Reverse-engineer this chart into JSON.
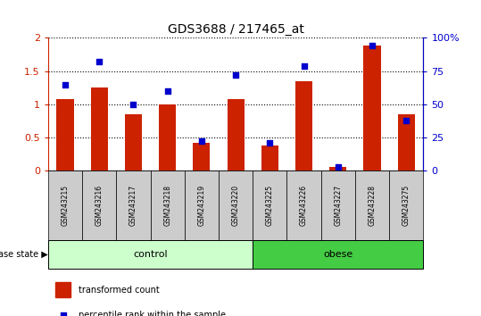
{
  "title": "GDS3688 / 217465_at",
  "samples": [
    "GSM243215",
    "GSM243216",
    "GSM243217",
    "GSM243218",
    "GSM243219",
    "GSM243220",
    "GSM243225",
    "GSM243226",
    "GSM243227",
    "GSM243228",
    "GSM243275"
  ],
  "transformed_count": [
    1.08,
    1.25,
    0.85,
    1.0,
    0.42,
    1.08,
    0.38,
    1.35,
    0.05,
    1.88,
    0.85
  ],
  "percentile_rank": [
    65,
    82,
    50,
    60,
    22,
    72,
    21,
    79,
    3,
    94,
    38
  ],
  "bar_color": "#cc2200",
  "scatter_color": "#0000cc",
  "ylim_left": [
    0,
    2
  ],
  "ylim_right": [
    0,
    100
  ],
  "yticks_left": [
    0,
    0.5,
    1.0,
    1.5,
    2.0
  ],
  "yticks_right": [
    0,
    25,
    50,
    75,
    100
  ],
  "ytick_labels_right": [
    "0",
    "25",
    "50",
    "75",
    "100%"
  ],
  "ytick_labels_left": [
    "0",
    "0.5",
    "1",
    "1.5",
    "2"
  ],
  "grid_color": "black",
  "grid_linestyle": "dotted",
  "n_control": 6,
  "n_obese": 5,
  "control_color": "#ccffcc",
  "obese_color": "#44cc44",
  "control_label": "control",
  "obese_label": "obese",
  "disease_state_label": "disease state",
  "legend_bar_label": "transformed count",
  "legend_scatter_label": "percentile rank within the sample",
  "tick_label_color_left": "#cc2200",
  "tick_label_color_right": "#0000cc",
  "xlabel_bgcolor": "#cccccc",
  "bar_width": 0.5,
  "scatter_marker": "s",
  "scatter_size": 18
}
